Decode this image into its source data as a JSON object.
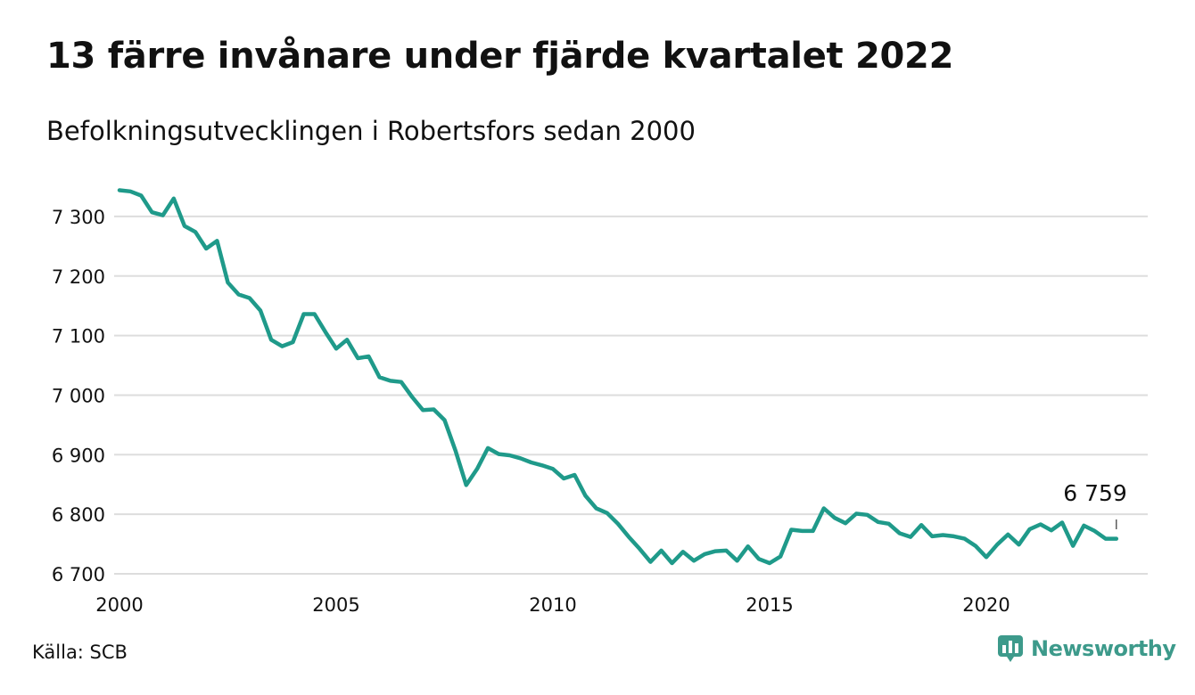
{
  "header": {
    "title": "13 färre invånare under fjärde kvartalet 2022",
    "subtitle": "Befolkningsutvecklingen i Robertsfors sedan 2000"
  },
  "footer": {
    "source": "Källa: SCB",
    "brand": "Newsworthy",
    "brand_icon": "newsworthy-logo-icon"
  },
  "colors": {
    "line": "#1f9a8a",
    "grid": "#dddddd",
    "brand": "#3d9a8b"
  },
  "chart_data": {
    "type": "line",
    "title": "13 färre invånare under fjärde kvartalet 2022",
    "subtitle": "Befolkningsutvecklingen i Robertsfors sedan 2000",
    "xlabel": "",
    "ylabel": "",
    "xlim": [
      2000,
      2023.5
    ],
    "ylim": [
      6690,
      7350
    ],
    "x_ticks": [
      2000,
      2005,
      2010,
      2015,
      2020
    ],
    "x_tick_labels": [
      "2000",
      "2005",
      "2010",
      "2015",
      "2020"
    ],
    "y_ticks": [
      6700,
      6800,
      6900,
      7000,
      7100,
      7200,
      7300
    ],
    "y_tick_labels": [
      "6 700",
      "6 800",
      "6 900",
      "7 000",
      "7 100",
      "7 200",
      "7 300"
    ],
    "grid": "horizontal",
    "legend": "none",
    "x": [
      2000.0,
      2000.25,
      2000.5,
      2000.75,
      2001.0,
      2001.25,
      2001.5,
      2001.75,
      2002.0,
      2002.25,
      2002.5,
      2002.75,
      2003.0,
      2003.25,
      2003.5,
      2003.75,
      2004.0,
      2004.25,
      2004.5,
      2004.75,
      2005.0,
      2005.25,
      2005.5,
      2005.75,
      2006.0,
      2006.25,
      2006.5,
      2006.75,
      2007.0,
      2007.25,
      2007.5,
      2007.75,
      2008.0,
      2008.25,
      2008.5,
      2008.75,
      2009.0,
      2009.25,
      2009.5,
      2009.75,
      2010.0,
      2010.25,
      2010.5,
      2010.75,
      2011.0,
      2011.25,
      2011.5,
      2011.75,
      2012.0,
      2012.25,
      2012.5,
      2012.75,
      2013.0,
      2013.25,
      2013.5,
      2013.75,
      2014.0,
      2014.25,
      2014.5,
      2014.75,
      2015.0,
      2015.25,
      2015.5,
      2015.75,
      2016.0,
      2016.25,
      2016.5,
      2016.75,
      2017.0,
      2017.25,
      2017.5,
      2017.75,
      2018.0,
      2018.25,
      2018.5,
      2018.75,
      2019.0,
      2019.25,
      2019.5,
      2019.75,
      2020.0,
      2020.25,
      2020.5,
      2020.75,
      2021.0,
      2021.25,
      2021.5,
      2021.75,
      2022.0,
      2022.25,
      2022.5,
      2022.75,
      2023.0
    ],
    "series": [
      {
        "values": [
          7344,
          7342,
          7335,
          7307,
          7302,
          7330,
          7284,
          7274,
          7246,
          7259,
          7189,
          7169,
          7163,
          7142,
          7093,
          7082,
          7089,
          7136,
          7136,
          7106,
          7078,
          7093,
          7062,
          7065,
          7030,
          7024,
          7022,
          6997,
          6975,
          6976,
          6958,
          6907,
          6849,
          6876,
          6911,
          6901,
          6899,
          6894,
          6887,
          6882,
          6876,
          6860,
          6866,
          6831,
          6810,
          6802,
          6784,
          6762,
          6742,
          6720,
          6739,
          6718,
          6737,
          6722,
          6733,
          6738,
          6739,
          6722,
          6746,
          6725,
          6718,
          6729,
          6774,
          6772,
          6772,
          6810,
          6794,
          6785,
          6801,
          6799,
          6787,
          6784,
          6768,
          6762,
          6782,
          6763,
          6765,
          6763,
          6759,
          6747,
          6728,
          6749,
          6766,
          6749,
          6775,
          6783,
          6773,
          6786,
          6747,
          6781,
          6772,
          6759,
          6759
        ]
      }
    ],
    "last_value_label": "6 759"
  }
}
